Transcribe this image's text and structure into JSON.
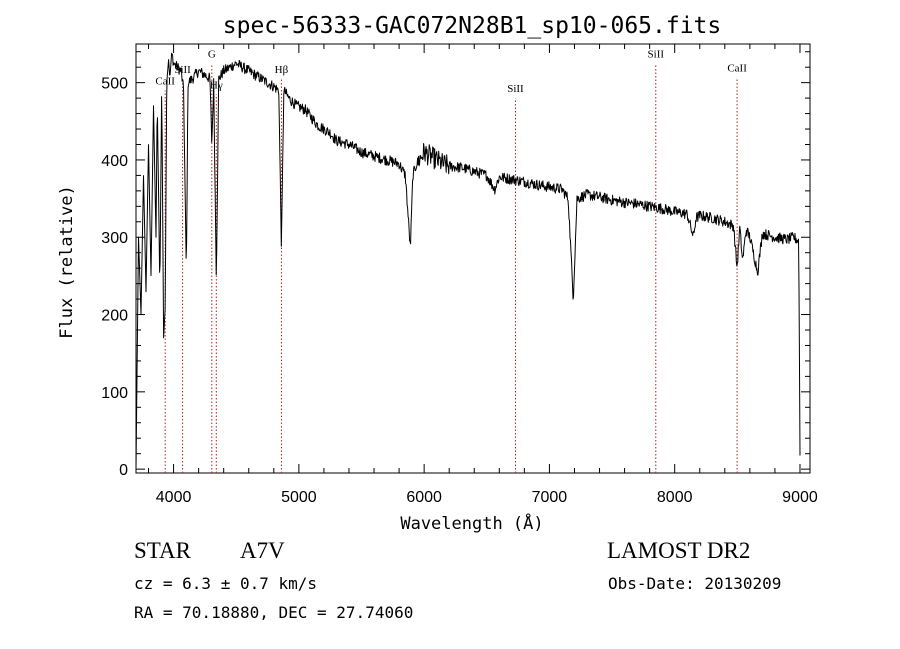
{
  "chart_data": {
    "type": "line",
    "title": "spec-56333-GAC072N28B1_sp10-065.fits",
    "xlabel": "Wavelength (Å)",
    "ylabel": "Flux (relative)",
    "xlim": [
      3700,
      9080
    ],
    "ylim": [
      -5,
      550
    ],
    "xticks": [
      4000,
      5000,
      6000,
      7000,
      8000,
      9000
    ],
    "yticks": [
      0,
      100,
      200,
      300,
      400,
      500
    ],
    "grid": false,
    "line_color": "#000000",
    "marker_color": "#b22222",
    "lines": [
      {
        "label": "CaII",
        "x": 3933,
        "level": 495
      },
      {
        "label": "SiII",
        "x": 4072,
        "level": 510
      },
      {
        "label": "G",
        "x": 4305,
        "level": 530
      },
      {
        "label": "Hγ",
        "x": 4341,
        "level": 490
      },
      {
        "label": "Hβ",
        "x": 4861,
        "level": 510
      },
      {
        "label": "SiII",
        "x": 6729,
        "level": 485
      },
      {
        "label": "SiII",
        "x": 7849,
        "level": 530
      },
      {
        "label": "CaII",
        "x": 8498,
        "level": 512
      }
    ],
    "spectrum": {
      "x": [
        3700,
        3720,
        3740,
        3760,
        3780,
        3800,
        3820,
        3840,
        3860,
        3870,
        3890,
        3905,
        3920,
        3933,
        3945,
        3960,
        3970,
        3985,
        4000,
        4030,
        4060,
        4080,
        4102,
        4115,
        4150,
        4200,
        4250,
        4290,
        4305,
        4320,
        4341,
        4360,
        4400,
        4450,
        4500,
        4550,
        4600,
        4650,
        4700,
        4750,
        4800,
        4840,
        4861,
        4880,
        4920,
        4980,
        5050,
        5100,
        5150,
        5200,
        5250,
        5300,
        5400,
        5500,
        5600,
        5700,
        5800,
        5850,
        5890,
        5910,
        5940,
        6000,
        6050,
        6100,
        6150,
        6200,
        6300,
        6400,
        6500,
        6563,
        6600,
        6700,
        6800,
        6900,
        7000,
        7100,
        7150,
        7190,
        7220,
        7300,
        7400,
        7500,
        7600,
        7700,
        7800,
        7900,
        8000,
        8100,
        8150,
        8170,
        8200,
        8300,
        8400,
        8470,
        8498,
        8520,
        8542,
        8570,
        8600,
        8662,
        8700,
        8800,
        8900,
        8950,
        8990,
        9000
      ],
      "y": [
        0,
        300,
        200,
        380,
        230,
        420,
        250,
        470,
        300,
        480,
        230,
        500,
        170,
        210,
        500,
        530,
        505,
        540,
        525,
        520,
        515,
        490,
        250,
        500,
        505,
        515,
        510,
        505,
        420,
        500,
        245,
        505,
        515,
        520,
        525,
        520,
        515,
        510,
        505,
        500,
        495,
        490,
        285,
        490,
        480,
        470,
        465,
        455,
        445,
        440,
        435,
        425,
        420,
        410,
        405,
        400,
        395,
        380,
        285,
        380,
        395,
        410,
        405,
        400,
        395,
        392,
        390,
        385,
        380,
        362,
        378,
        375,
        372,
        368,
        365,
        362,
        350,
        220,
        350,
        355,
        352,
        348,
        345,
        343,
        340,
        337,
        333,
        330,
        300,
        325,
        328,
        325,
        320,
        315,
        260,
        312,
        270,
        310,
        300,
        255,
        305,
        300,
        297,
        300,
        295,
        20
      ]
    }
  },
  "info": {
    "object_class": "STAR",
    "subclass": "A7V",
    "survey": "LAMOST DR2",
    "cz": "cz = 6.3 ± 0.7 km/s",
    "obs_date": "Obs-Date: 20130209",
    "coords": "RA =  70.18880, DEC =  27.74060"
  }
}
